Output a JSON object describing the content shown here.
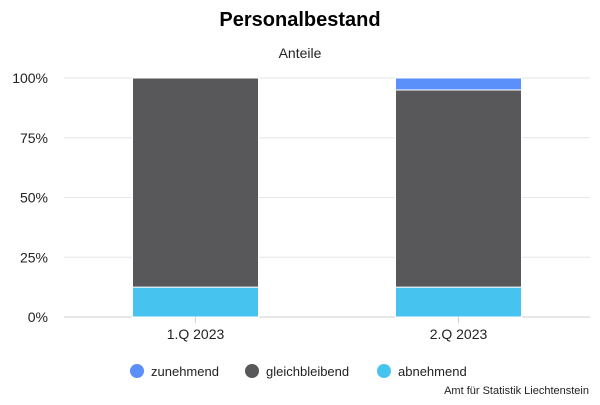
{
  "chart_data": {
    "type": "bar",
    "stacked": true,
    "title": "Personalbestand",
    "subtitle": "Anteile",
    "categories": [
      "1.Q 2023",
      "2.Q 2023"
    ],
    "series": [
      {
        "name": "zunehmend",
        "color": "#5b8ff9",
        "values": [
          0,
          5
        ]
      },
      {
        "name": "gleichbleibend",
        "color": "#58585a",
        "values": [
          87.5,
          82.5
        ]
      },
      {
        "name": "abnehmend",
        "color": "#47c3f0",
        "values": [
          12.5,
          12.5
        ]
      }
    ],
    "y_ticks": [
      "0%",
      "25%",
      "50%",
      "75%",
      "100%"
    ],
    "ylim": [
      0,
      100
    ],
    "grid": true,
    "legend_position": "bottom"
  },
  "credit": "Amt für Statistik Liechtenstein"
}
